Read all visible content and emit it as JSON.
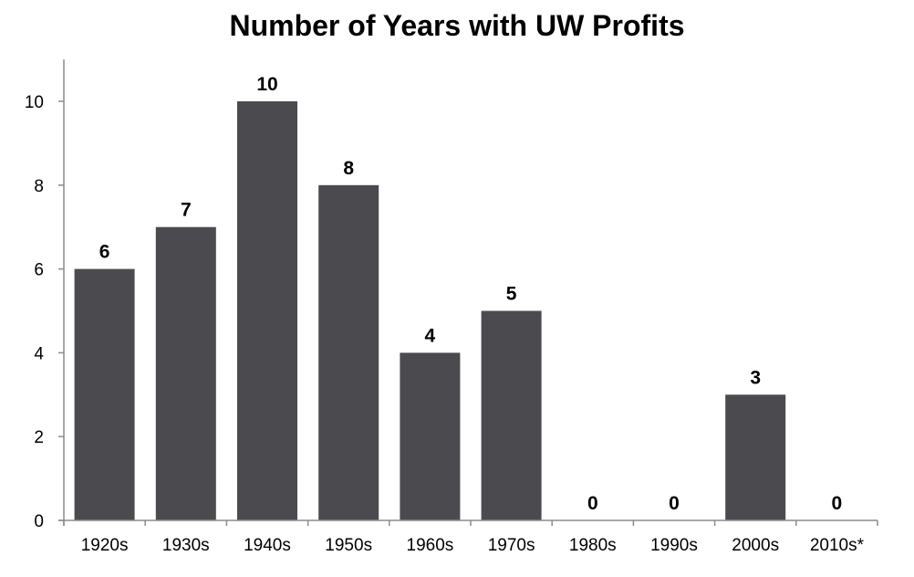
{
  "chart_data": {
    "type": "bar",
    "title": "Number of Years with UW Profits",
    "xlabel": "",
    "ylabel": "",
    "categories": [
      "1920s",
      "1930s",
      "1940s",
      "1950s",
      "1960s",
      "1970s",
      "1980s",
      "1990s",
      "2000s",
      "2010s*"
    ],
    "values": [
      6,
      7,
      10,
      8,
      4,
      5,
      0,
      0,
      3,
      0
    ],
    "ylim": [
      0,
      11
    ],
    "yticks": [
      0,
      2,
      4,
      6,
      8,
      10
    ],
    "data_labels": true,
    "grid": false,
    "legend": "none",
    "bar_color": "#4b4b4f",
    "axis_color": "#8c8c8c"
  }
}
